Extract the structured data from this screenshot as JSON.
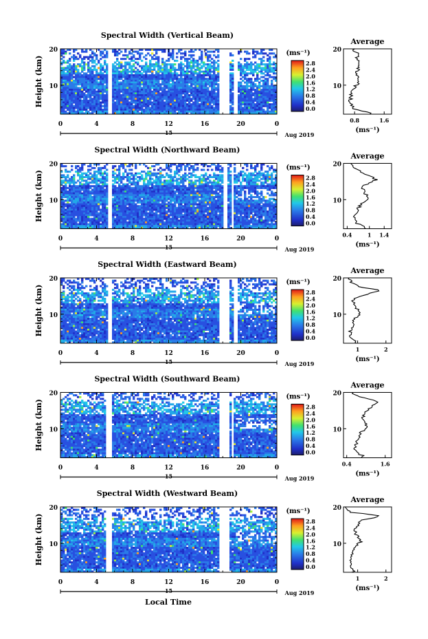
{
  "figure": {
    "x_axis_label": "Local Time",
    "date_label": "Aug 2019",
    "date_day": "15",
    "unit_label": "(ms⁻¹)"
  },
  "chart_data": [
    {
      "type": "heatmap",
      "title": "Spectral Width (Vertical Beam)",
      "ylabel": "Height (km)",
      "x_ticks": [
        "0",
        "4",
        "8",
        "12",
        "16",
        "20",
        "0"
      ],
      "xlim": [
        0,
        24
      ],
      "ylim": [
        2,
        20
      ],
      "y_ticks": [
        "20",
        "10"
      ],
      "colorbar_ticks": [
        "2.8",
        "2.4",
        "2.0",
        "1.6",
        "1.2",
        "0.8",
        "0.4",
        "0.0"
      ],
      "gaps_hours": [
        [
          5.3,
          5.8
        ],
        [
          17.6,
          18.8
        ],
        [
          19.2,
          19.6
        ]
      ],
      "profile": {
        "title": "Average",
        "xlabel": "(ms⁻¹)",
        "x_ticks": [
          "0.8",
          "1.6"
        ],
        "x_tick_values": [
          0.8,
          1.6
        ],
        "xlim": [
          0.5,
          1.8
        ],
        "y_ticks": [
          "20",
          "10"
        ],
        "heights": [
          2.5,
          3.5,
          4.5,
          5.5,
          6.5,
          7.5,
          8.5,
          9.5,
          10.5,
          11.5,
          12.5,
          13.5,
          14.5,
          15.5,
          16.5,
          17.5,
          18.5,
          19.5
        ],
        "values": [
          1.2,
          0.8,
          0.7,
          0.68,
          0.7,
          0.72,
          0.75,
          0.8,
          0.9,
          0.95,
          0.9,
          0.85,
          0.9,
          0.88,
          0.92,
          0.85,
          0.9,
          0.8
        ]
      }
    },
    {
      "type": "heatmap",
      "title": "Spectral Width (Northward Beam)",
      "ylabel": "Height (km)",
      "x_ticks": [
        "0",
        "4",
        "8",
        "12",
        "16",
        "20",
        "0"
      ],
      "xlim": [
        0,
        24
      ],
      "ylim": [
        2,
        20
      ],
      "y_ticks": [
        "20",
        "10"
      ],
      "colorbar_ticks": [
        "2.8",
        "2.4",
        "2.0",
        "1.6",
        "1.2",
        "0.8",
        "0.4",
        "0.0"
      ],
      "gaps_hours": [
        [
          5.3,
          5.8
        ],
        [
          18.0,
          18.6
        ],
        [
          18.9,
          19.3
        ]
      ],
      "profile": {
        "title": "Average",
        "xlabel": "(ms⁻¹)",
        "x_ticks": [
          "0.4",
          "1",
          "1.4"
        ],
        "x_tick_values": [
          0.4,
          1.0,
          1.4
        ],
        "xlim": [
          0.3,
          1.6
        ],
        "y_ticks": [
          "20",
          "10"
        ],
        "heights": [
          2.5,
          3.5,
          4.5,
          5.5,
          6.5,
          7.5,
          8.5,
          9.5,
          10.5,
          11.5,
          12.5,
          13.5,
          14.5,
          15.5,
          16.5,
          17.5,
          18.5,
          19.5
        ],
        "values": [
          0.9,
          0.65,
          0.6,
          0.62,
          0.65,
          0.7,
          0.75,
          0.85,
          0.95,
          0.9,
          0.85,
          0.8,
          0.95,
          1.2,
          1.0,
          0.8,
          0.6,
          0.5
        ]
      }
    },
    {
      "type": "heatmap",
      "title": "Spectral Width (Eastward Beam)",
      "ylabel": "Height (km)",
      "x_ticks": [
        "0",
        "4",
        "8",
        "12",
        "16",
        "20",
        "0"
      ],
      "xlim": [
        0,
        24
      ],
      "ylim": [
        2,
        20
      ],
      "y_ticks": [
        "20",
        "10"
      ],
      "colorbar_ticks": [
        "2.8",
        "2.4",
        "2.0",
        "1.6",
        "1.2",
        "0.8",
        "0.4",
        "0.0"
      ],
      "gaps_hours": [
        [
          5.3,
          5.8
        ],
        [
          17.6,
          18.8
        ],
        [
          19.2,
          19.6
        ]
      ],
      "profile": {
        "title": "Average",
        "xlabel": "(ms⁻¹)",
        "x_ticks": [
          "1",
          "2"
        ],
        "x_tick_values": [
          1,
          2
        ],
        "xlim": [
          0.5,
          2.2
        ],
        "y_ticks": [
          "20",
          "10"
        ],
        "heights": [
          2.5,
          3.5,
          4.5,
          5.5,
          6.5,
          7.5,
          8.5,
          9.5,
          10.5,
          11.5,
          12.5,
          13.5,
          14.5,
          15.5,
          16.5,
          17.5,
          18.5,
          19.5
        ],
        "values": [
          0.9,
          0.75,
          0.72,
          0.75,
          0.8,
          0.85,
          0.9,
          1.0,
          1.1,
          0.95,
          0.9,
          0.85,
          0.9,
          1.3,
          1.8,
          1.1,
          0.8,
          0.7
        ]
      }
    },
    {
      "type": "heatmap",
      "title": "Spectral Width (Southward Beam)",
      "ylabel": "Height (km)",
      "x_ticks": [
        "0",
        "4",
        "8",
        "12",
        "16",
        "20",
        "0"
      ],
      "xlim": [
        0,
        24
      ],
      "ylim": [
        2,
        20
      ],
      "y_ticks": [
        "20",
        "10"
      ],
      "colorbar_ticks": [
        "2.8",
        "2.4",
        "2.0",
        "1.6",
        "1.2",
        "0.8",
        "0.4",
        "0.0"
      ],
      "gaps_hours": [
        [
          5.0,
          5.6
        ],
        [
          17.6,
          18.7
        ],
        [
          18.9,
          19.3
        ]
      ],
      "profile": {
        "title": "Average",
        "xlabel": "(ms⁻¹)",
        "x_ticks": [
          "0.4",
          "1.6"
        ],
        "x_tick_values": [
          0.4,
          1.6
        ],
        "xlim": [
          0.3,
          1.8
        ],
        "y_ticks": [
          "20",
          "10"
        ],
        "heights": [
          2.5,
          3.5,
          4.5,
          5.5,
          6.5,
          7.5,
          8.5,
          9.5,
          10.5,
          11.5,
          12.5,
          13.5,
          14.5,
          15.5,
          16.5,
          17.5,
          18.5,
          19.5
        ],
        "values": [
          0.9,
          0.7,
          0.65,
          0.68,
          0.7,
          0.75,
          0.8,
          0.9,
          1.05,
          1.0,
          0.95,
          0.9,
          1.0,
          1.1,
          1.2,
          1.4,
          0.9,
          0.6
        ]
      }
    },
    {
      "type": "heatmap",
      "title": "Spectral Width (Westward Beam)",
      "ylabel": "Height (km)",
      "x_ticks": [
        "0",
        "4",
        "8",
        "12",
        "16",
        "20",
        "0"
      ],
      "xlim": [
        0,
        24
      ],
      "ylim": [
        2,
        20
      ],
      "y_ticks": [
        "20",
        "10"
      ],
      "colorbar_ticks": [
        "2.8",
        "2.4",
        "2.0",
        "1.6",
        "1.2",
        "0.8",
        "0.4",
        "0.0"
      ],
      "gaps_hours": [
        [
          5.0,
          5.6
        ],
        [
          17.6,
          18.7
        ]
      ],
      "profile": {
        "title": "Average",
        "xlabel": "(ms⁻¹)",
        "x_ticks": [
          "1",
          "2"
        ],
        "x_tick_values": [
          1,
          2
        ],
        "xlim": [
          0.5,
          2.2
        ],
        "y_ticks": [
          "20",
          "10"
        ],
        "heights": [
          2.5,
          3.5,
          4.5,
          5.5,
          6.5,
          7.5,
          8.5,
          9.5,
          10.5,
          11.5,
          12.5,
          13.5,
          14.5,
          15.5,
          16.5,
          17.5,
          18.5,
          19.5
        ],
        "values": [
          0.85,
          0.75,
          0.72,
          0.75,
          0.8,
          0.85,
          0.9,
          1.0,
          1.1,
          1.0,
          0.95,
          0.9,
          0.95,
          1.05,
          1.2,
          1.9,
          0.8,
          0.6
        ]
      }
    }
  ]
}
